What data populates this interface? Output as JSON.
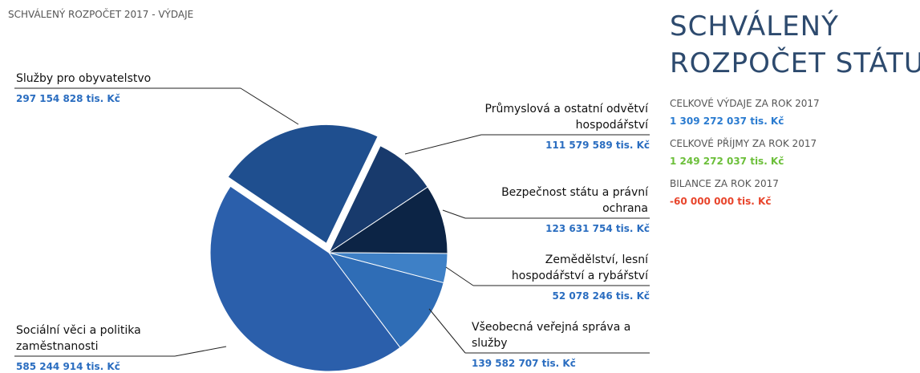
{
  "chart_data": {
    "type": "pie",
    "title": "SCHVÁLENÝ ROZPOČET 2017 - VÝDAJE",
    "categories": [
      "Služby pro obyvatelstvo",
      "Průmyslová a ostatní odvětví hospodářství",
      "Bezpečnost státu a právní ochrana",
      "Zemědělství, lesní hospodářství a rybářství",
      "Všeobecná veřejná správa a služby",
      "Sociální věci a politika zaměstnanosti"
    ],
    "values": [
      297154828,
      111579589,
      123631754,
      52078246,
      139582707,
      585244914
    ],
    "value_labels": [
      "297 154 828 tis. Kč",
      "111 579 589 tis. Kč",
      "123 631 754 tis. Kč",
      "52 078 246 tis. Kč",
      "139 582 707 tis. Kč",
      "585 244 914 tis. Kč"
    ],
    "colors": [
      "#1f4f8f",
      "#183a6c",
      "#0c2445",
      "#3e80c6",
      "#2f6db6",
      "#2b5fab"
    ]
  },
  "summary": {
    "title": [
      "SCHVÁLENÝ",
      "ROZPOČET STÁTU"
    ],
    "items": [
      {
        "label": "CELKOVÉ VÝDAJE ZA ROK 2017",
        "value": "1 309 272 037 tis. Kč",
        "color": "#2a7bd0"
      },
      {
        "label": "CELKOVÉ PŘÍJMY ZA ROK 2017",
        "value": "1 249 272 037 tis. Kč",
        "color": "#6cbf3a"
      },
      {
        "label": "BILANCE ZA ROK 2017",
        "value": "-60 000 000 tis. Kč",
        "color": "#e8452c"
      }
    ]
  }
}
